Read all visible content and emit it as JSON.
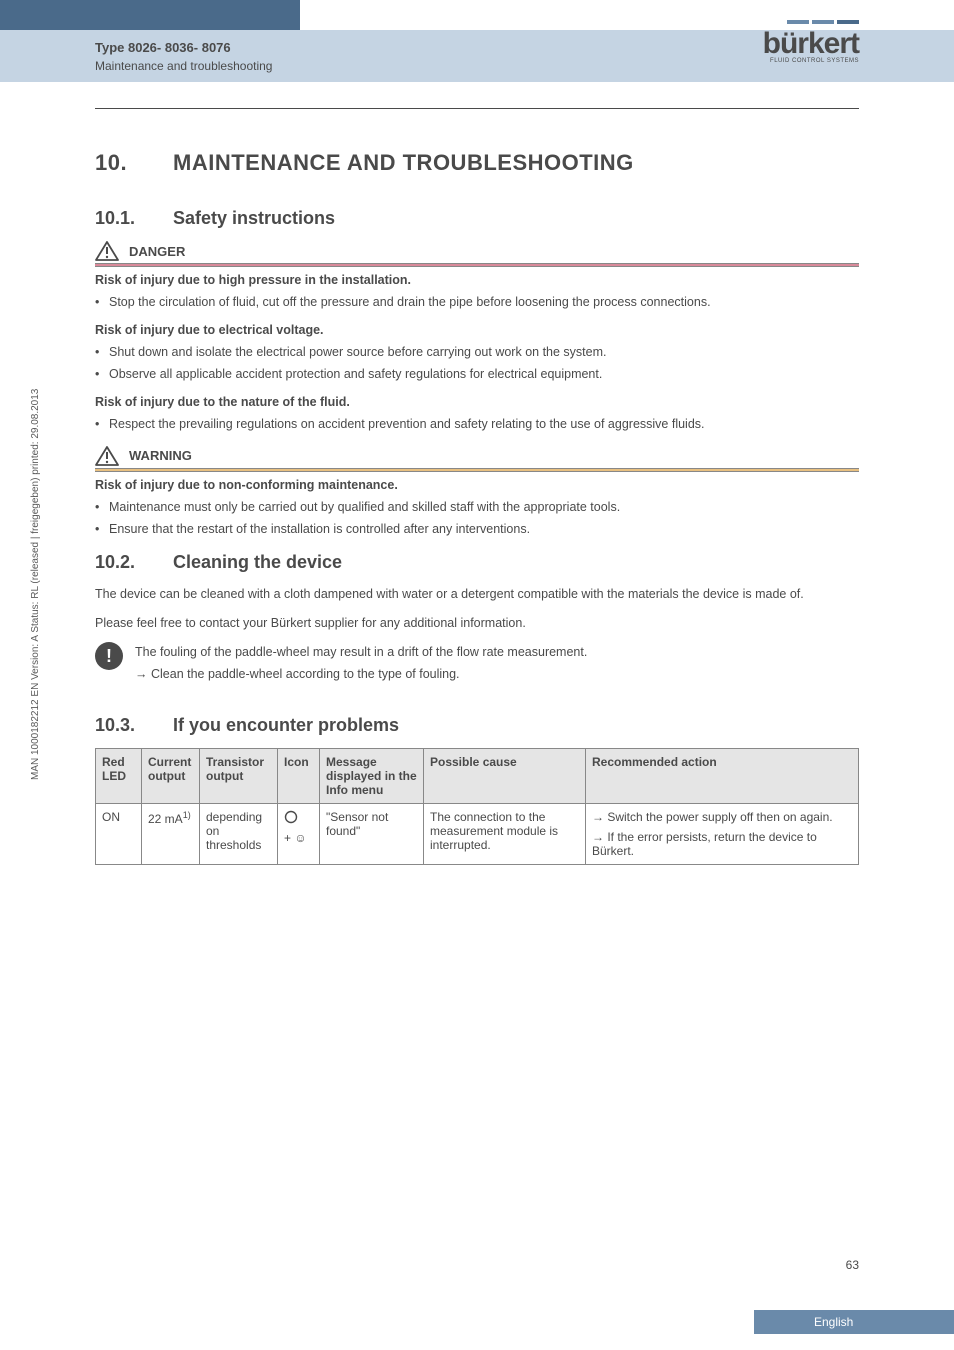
{
  "header": {
    "type_label": "Type 8026- 8036- 8076",
    "section_label": "Maintenance and troubleshooting",
    "logo_text": "bürkert",
    "logo_sub": "FLUID CONTROL SYSTEMS",
    "logo_bar_colors": [
      "#6a8aaa",
      "#6a8aaa",
      "#4a6a8a"
    ]
  },
  "sidebar": "MAN 1000182212 EN Version: A Status: RL (released | freigegeben) printed: 29.08.2013",
  "h1": {
    "num": "10.",
    "title": "MAINTENANCE AND TROUBLESHOOTING"
  },
  "sections": {
    "s1": {
      "num": "10.1.",
      "title": "Safety instructions",
      "danger": {
        "label": "DANGER",
        "blocks": [
          {
            "heading": "Risk of injury due to high pressure in the installation.",
            "items": [
              "Stop the circulation of fluid, cut off the pressure and drain the pipe before loosening the process connections."
            ]
          },
          {
            "heading": "Risk of injury due to electrical voltage.",
            "items": [
              "Shut down and isolate the electrical power source before carrying out work on the system.",
              "Observe all applicable accident protection and safety regulations for electrical equipment."
            ]
          },
          {
            "heading": "Risk of injury due to the nature of the fluid.",
            "items": [
              "Respect the prevailing regulations on accident prevention and safety relating to the use of aggressive fluids."
            ]
          }
        ]
      },
      "warning": {
        "label": "WARNING",
        "heading": "Risk of injury due to non-conforming maintenance.",
        "items": [
          "Maintenance must only be carried out by qualified and skilled staff with the appropriate tools.",
          "Ensure that the restart of the installation is controlled after any interventions."
        ]
      }
    },
    "s2": {
      "num": "10.2.",
      "title": "Cleaning the device",
      "p1": "The device can be cleaned with a cloth dampened with water or a detergent compatible with the materials the device is made of.",
      "p2": "Please feel free to contact your Bürkert supplier for any additional information.",
      "note1": "The fouling of the paddle-wheel may result in a drift of the flow rate measurement.",
      "note2": "Clean the paddle-wheel according to the type of fouling."
    },
    "s3": {
      "num": "10.3.",
      "title": "If you encounter problems",
      "table": {
        "columns": [
          "Red LED",
          "Current output",
          "Transistor output",
          "Icon",
          "Message displayed in the Info menu",
          "Possible cause",
          "Recommended action"
        ],
        "col_widths": [
          "46px",
          "58px",
          "78px",
          "42px",
          "104px",
          "162px",
          "auto"
        ],
        "row": {
          "red_led": "ON",
          "current": "22 mA",
          "current_sup": "1)",
          "transistor": "depending on thresholds",
          "icon_shape_desc": "empty-circle",
          "icon_plus": "+",
          "icon_face": "☺",
          "message": "\"Sensor not found\"",
          "cause": "The connection to the measurement module is interrupted.",
          "action1": "Switch the power supply off then on again.",
          "action2": "If the error persists, return the device to Bürkert."
        }
      }
    }
  },
  "page_number": "63",
  "footer_lang": "English",
  "colors": {
    "header_dark": "#4a6a8a",
    "header_light": "#c5d4e3",
    "danger_bar": "#d98a9a",
    "warning_bar": "#e8c080",
    "footer": "#6a8aaa",
    "text": "#4a4a4a",
    "table_header_bg": "#e5e5e5",
    "border": "#888888"
  }
}
